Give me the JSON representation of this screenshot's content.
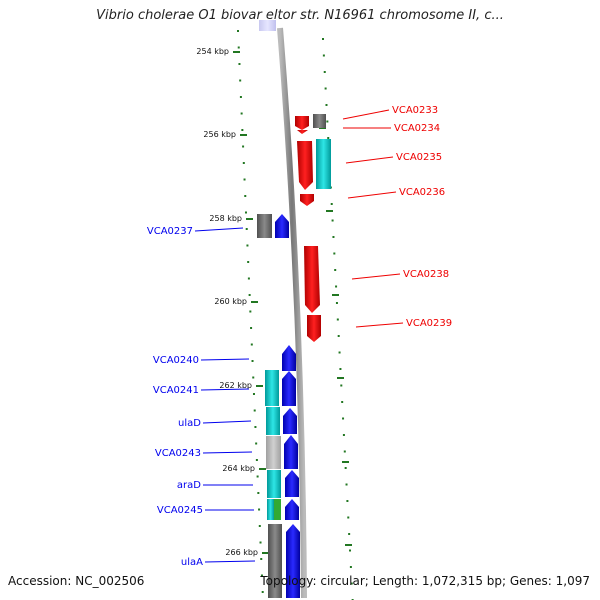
{
  "title": "Vibrio cholerae O1 biovar eltor str. N16961 chromosome II, c...",
  "footer": {
    "accession": "Accession: NC_002506",
    "stats": "Topology: circular; Length: 1,072,315 bp; Genes: 1,097"
  },
  "colors": {
    "forward": "#0000ee",
    "reverse": "#ee0000",
    "cyan": "#00c8c8",
    "gray": "#707070",
    "lightgray": "#b8b8b8",
    "green": "#33aa33",
    "tick": "#227722",
    "backbone": "#888888"
  },
  "ticks": [
    {
      "label": "254 kbp"
    },
    {
      "label": "256 kbp"
    },
    {
      "label": "258 kbp"
    },
    {
      "label": "260 kbp"
    },
    {
      "label": "262 kbp"
    },
    {
      "label": "264 kbp"
    },
    {
      "label": "266 kbp"
    }
  ],
  "genes_right": [
    {
      "label": "VCA0233"
    },
    {
      "label": "VCA0234"
    },
    {
      "label": "VCA0235"
    },
    {
      "label": "VCA0236"
    },
    {
      "label": "VCA0238"
    },
    {
      "label": "VCA0239"
    }
  ],
  "genes_left": [
    {
      "label": "VCA0237"
    },
    {
      "label": "VCA0240"
    },
    {
      "label": "VCA0241"
    },
    {
      "label": "ulaD"
    },
    {
      "label": "VCA0243"
    },
    {
      "label": "araD"
    },
    {
      "label": "VCA0245"
    },
    {
      "label": "ulaA"
    }
  ]
}
